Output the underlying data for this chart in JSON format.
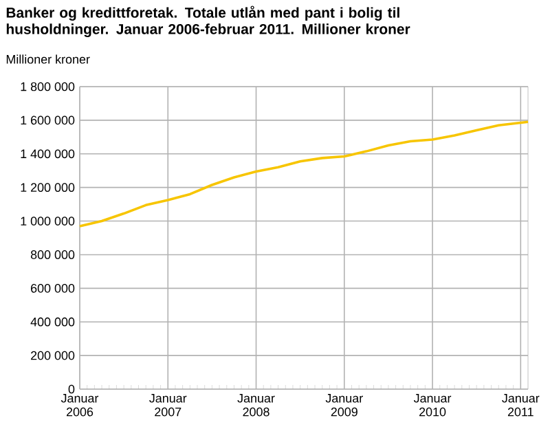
{
  "chart_data": {
    "type": "line",
    "title": "Banker og kredittforetak. Totale utlån med pant i bolig til husholdninger. Januar 2006-februar 2011. Millioner kroner",
    "ylabel": "Millioner kroner",
    "x": [
      "2006-01",
      "2006-04",
      "2006-07",
      "2006-10",
      "2007-01",
      "2007-04",
      "2007-07",
      "2007-10",
      "2008-01",
      "2008-04",
      "2008-07",
      "2008-10",
      "2009-01",
      "2009-04",
      "2009-07",
      "2009-10",
      "2010-01",
      "2010-04",
      "2010-07",
      "2010-10",
      "2011-01",
      "2011-02"
    ],
    "series": [
      {
        "color": "#f7c500",
        "values": [
          970000,
          1000000,
          1045000,
          1095000,
          1125000,
          1160000,
          1215000,
          1260000,
          1295000,
          1320000,
          1355000,
          1375000,
          1385000,
          1415000,
          1450000,
          1475000,
          1485000,
          1510000,
          1540000,
          1570000,
          1585000,
          1590000
        ]
      }
    ],
    "xlim": [
      "2006-01",
      "2011-02"
    ],
    "xticks": [
      {
        "value": "2006-01",
        "label": "Januar 2006"
      },
      {
        "value": "2007-01",
        "label": "Januar 2007"
      },
      {
        "value": "2008-01",
        "label": "Januar 2008"
      },
      {
        "value": "2009-01",
        "label": "Januar 2009"
      },
      {
        "value": "2010-01",
        "label": "Januar 2010"
      },
      {
        "value": "2011-01",
        "label": "Januar 2011"
      }
    ],
    "ylim": [
      0,
      1800000
    ],
    "yticks": [
      0,
      {
        "value": 200000,
        "label": "200 000"
      },
      {
        "value": 400000,
        "label": "400 000"
      },
      {
        "value": 600000,
        "label": "600 000"
      },
      {
        "value": 800000,
        "label": "800 000"
      },
      {
        "value": 1000000,
        "label": "1 000 000"
      },
      {
        "value": 1200000,
        "label": "1 200 000"
      },
      {
        "value": 1400000,
        "label": "1 400 000"
      },
      {
        "value": 1600000,
        "label": "1 600 000"
      },
      {
        "value": 1800000,
        "label": "1 800 000"
      }
    ],
    "grid": true,
    "marker": "none",
    "line_style": "solid"
  }
}
